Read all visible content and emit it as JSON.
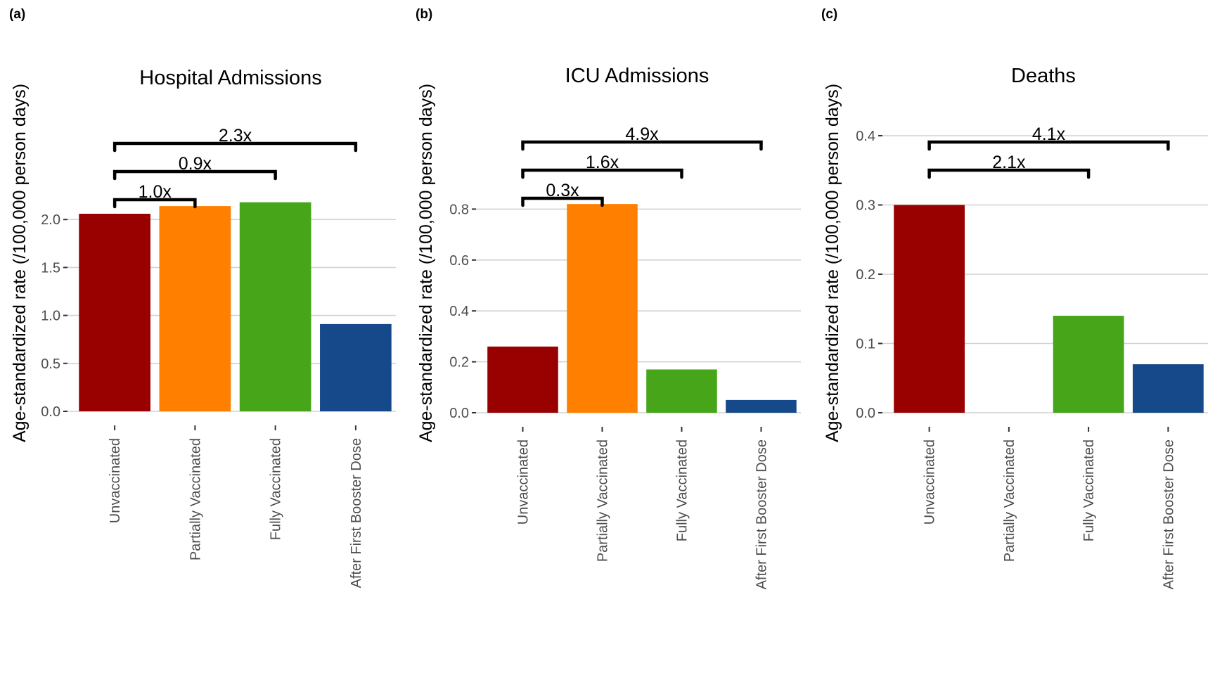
{
  "chart_data": [
    {
      "type": "bar",
      "panel_label": "(a)",
      "title": "Hospital Admissions",
      "xlabel": "",
      "ylabel": "Age-standardized rate (/100,000 person days)",
      "categories": [
        "Unvaccinated",
        "Partially Vaccinated",
        "Fully Vaccinated",
        "After First Booster Dose"
      ],
      "values": [
        2.06,
        2.14,
        2.18,
        0.91
      ],
      "colors": [
        "#990000",
        "#FF8000",
        "#46A519",
        "#164989"
      ],
      "yticks": [
        0.0,
        0.5,
        1.0,
        1.5,
        2.0
      ],
      "ytick_labels": [
        "0.0",
        "0.5",
        "1.0",
        "1.5",
        "2.0"
      ],
      "ylim": [
        0,
        2.2
      ],
      "grid": true,
      "comparisons": [
        {
          "from": 0,
          "to": 1,
          "label": "1.0x"
        },
        {
          "from": 0,
          "to": 2,
          "label": "0.9x"
        },
        {
          "from": 0,
          "to": 3,
          "label": "2.3x"
        }
      ]
    },
    {
      "type": "bar",
      "panel_label": "(b)",
      "title": "ICU Admissions",
      "xlabel": "",
      "ylabel": "Age-standardized rate (/100,000 person days)",
      "categories": [
        "Unvaccinated",
        "Partially Vaccinated",
        "Fully Vaccinated",
        "After First Booster Dose"
      ],
      "values": [
        0.26,
        0.82,
        0.17,
        0.05
      ],
      "colors": [
        "#990000",
        "#FF8000",
        "#46A519",
        "#164989"
      ],
      "yticks": [
        0.0,
        0.2,
        0.4,
        0.6,
        0.8
      ],
      "ytick_labels": [
        "0.0",
        "0.2",
        "0.4",
        "0.6",
        "0.8"
      ],
      "ylim": [
        0,
        0.86
      ],
      "grid": true,
      "comparisons": [
        {
          "from": 0,
          "to": 1,
          "label": "0.3x"
        },
        {
          "from": 0,
          "to": 2,
          "label": "1.6x"
        },
        {
          "from": 0,
          "to": 3,
          "label": "4.9x"
        }
      ]
    },
    {
      "type": "bar",
      "panel_label": "(c)",
      "title": "Deaths",
      "xlabel": "",
      "ylabel": "Age-standardized rate (/100,000 person days)",
      "categories": [
        "Unvaccinated",
        "Partially Vaccinated",
        "Fully Vaccinated",
        "After First Booster Dose"
      ],
      "values": [
        0.3,
        0.0,
        0.14,
        0.07
      ],
      "colors": [
        "#990000",
        "#FF8000",
        "#46A519",
        "#164989"
      ],
      "yticks": [
        0.0,
        0.1,
        0.2,
        0.3,
        0.4
      ],
      "ytick_labels": [
        "0.0",
        "0.1",
        "0.2",
        "0.3",
        "0.4"
      ],
      "ylim": [
        0,
        0.41
      ],
      "grid": true,
      "comparisons": [
        {
          "from": 0,
          "to": 2,
          "label": "2.1x"
        },
        {
          "from": 0,
          "to": 3,
          "label": "4.1x"
        }
      ]
    }
  ]
}
